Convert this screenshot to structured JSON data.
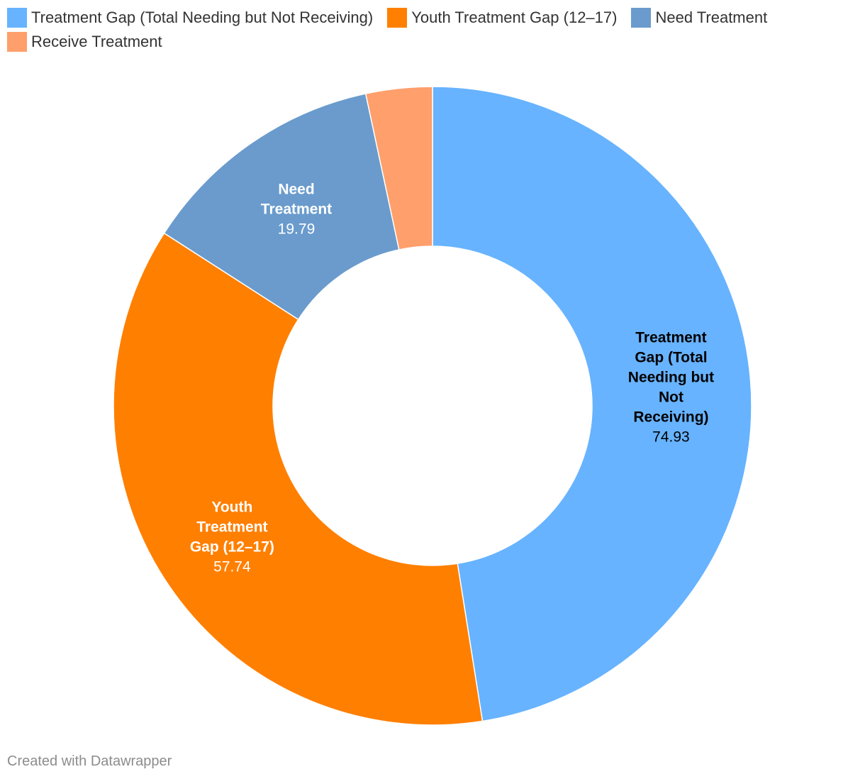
{
  "chart_data": {
    "type": "pie",
    "title": "",
    "categories": [
      "Treatment Gap (Total Needing but Not Receiving)",
      "Youth Treatment Gap (12–17)",
      "Need Treatment",
      "Receive Treatment"
    ],
    "values": [
      74.93,
      57.74,
      19.79,
      5.3
    ],
    "value_labels": [
      "74.93",
      "57.74",
      "19.79",
      ""
    ],
    "colors": [
      "#67b3ff",
      "#ff7f00",
      "#6a9bcc",
      "#ff9f6b"
    ],
    "label_colors": [
      "#000000",
      "#ffffff",
      "#ffffff",
      "#ffffff"
    ],
    "label_lines": [
      [
        "Treatment",
        "Gap (Total",
        "Needing but",
        "Not",
        "Receiving)"
      ],
      [
        "Youth",
        "Treatment",
        "Gap (12–17)"
      ],
      [
        "Need",
        "Treatment"
      ],
      []
    ],
    "donut": true,
    "legend_position": "top-left"
  },
  "footer": {
    "credit": "Created with Datawrapper"
  }
}
